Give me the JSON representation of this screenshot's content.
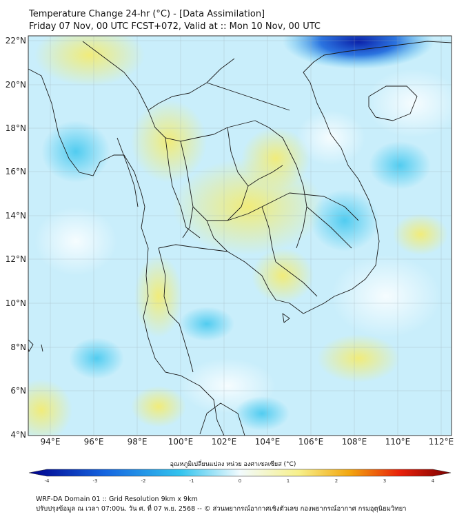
{
  "header": {
    "line1": "Temperature Change 24-hr (°C) - [Data Assimilation]",
    "line2": "Friday 07 Nov, 00 UTC FCST+072, Valid at :: Mon 10 Nov, 00 UTC"
  },
  "axes": {
    "lat_labels": [
      "22°N",
      "20°N",
      "18°N",
      "16°N",
      "14°N",
      "12°N",
      "10°N",
      "8°N",
      "6°N",
      "4°N"
    ],
    "lon_labels": [
      "94°E",
      "96°E",
      "98°E",
      "100°E",
      "102°E",
      "104°E",
      "106°E",
      "108°E",
      "110°E",
      "112°E"
    ]
  },
  "colorbar": {
    "title": "อุณหภูมิเปลี่ยนแปลง หน่วย องศาเซลเซียส (°C)",
    "ticks": [
      "-4",
      "-3",
      "-2",
      "-1",
      "0",
      "1",
      "2",
      "3",
      "4"
    ],
    "colors": {
      "deep_blue": "#00008b",
      "blue": "#1565e0",
      "cyan": "#33c4ee",
      "light": "#f2fbfe",
      "yellow": "#f7f08a",
      "orange": "#f2a60f",
      "red": "#e8200a",
      "dark_red": "#7a0000"
    }
  },
  "footer": {
    "line1": "WRF-DA Domain 01 :: Grid Resolution 9km x 9km",
    "line2": "ปรับปรุงข้อมูล ณ เวลา 07:00น. วัน ศ. ที่ 07 พ.ย. 2568 -- © ส่วนพยากรณ์อากาศเชิงตัวเลข กองพยากรณ์อากาศ กรมอุตุนิยมวิทยา"
  }
}
